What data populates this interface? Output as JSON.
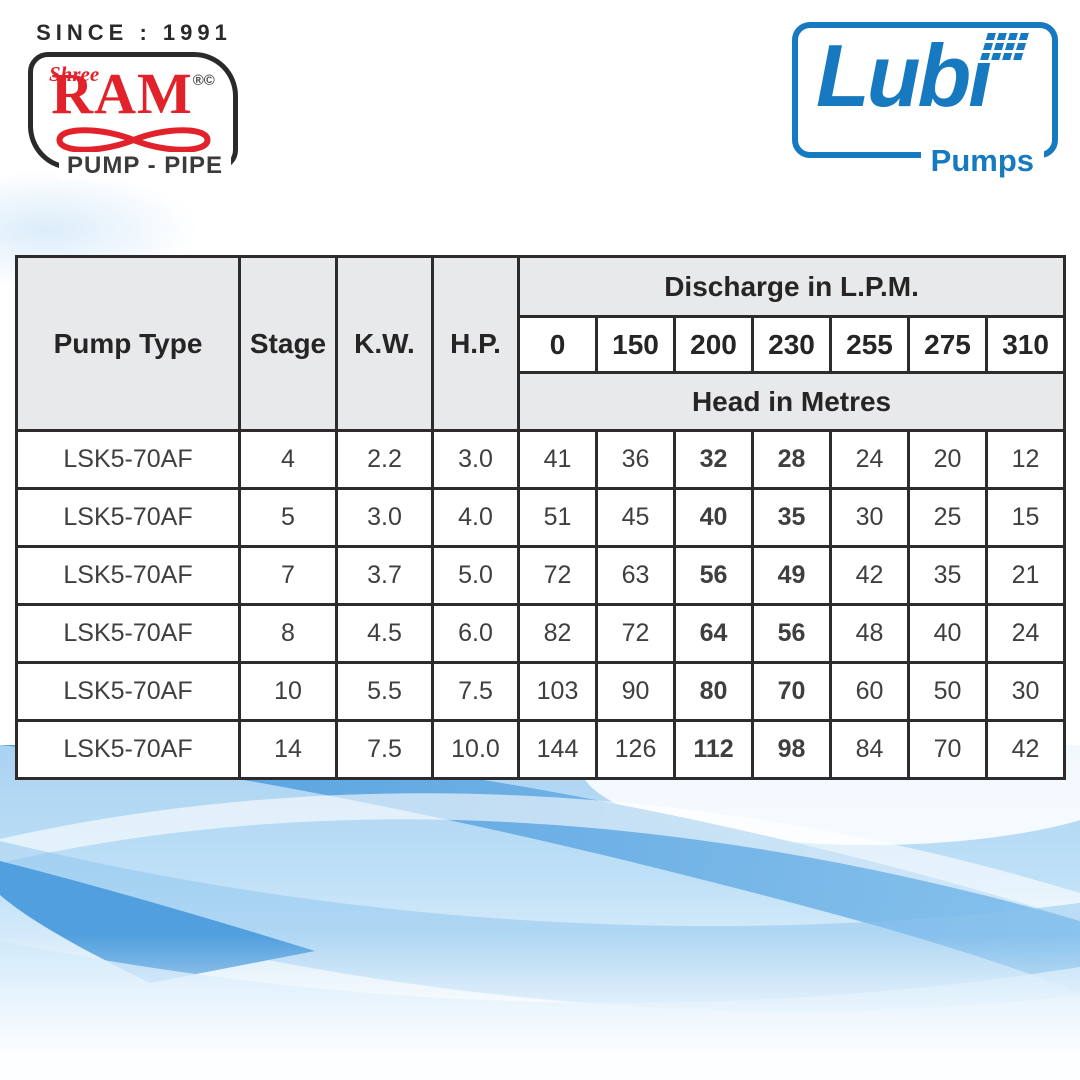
{
  "branding": {
    "since_label": "SINCE : 1991",
    "ram": {
      "script_word": "Shree",
      "wordmark": "RAM",
      "trademarks": "®©",
      "tagline": "PUMP - PIPE",
      "red": "#e2222a"
    },
    "lubi": {
      "wordmark": "Lubi",
      "sub_label": "Pumps",
      "blue": "#1779bf"
    }
  },
  "table": {
    "headers": {
      "pump_type": "Pump Type",
      "stage": "Stage",
      "kw": "K.W.",
      "hp": "H.P.",
      "discharge": "Discharge in L.P.M.",
      "head": "Head in Metres"
    },
    "discharge_columns": [
      "0",
      "150",
      "200",
      "230",
      "255",
      "275",
      "310"
    ],
    "bold_head_column_indexes": [
      2,
      3
    ],
    "rows": [
      {
        "pump_type": "LSK5-70AF",
        "stage": "4",
        "kw": "2.2",
        "hp": "3.0",
        "heads": [
          "41",
          "36",
          "32",
          "28",
          "24",
          "20",
          "12"
        ]
      },
      {
        "pump_type": "LSK5-70AF",
        "stage": "5",
        "kw": "3.0",
        "hp": "4.0",
        "heads": [
          "51",
          "45",
          "40",
          "35",
          "30",
          "25",
          "15"
        ]
      },
      {
        "pump_type": "LSK5-70AF",
        "stage": "7",
        "kw": "3.7",
        "hp": "5.0",
        "heads": [
          "72",
          "63",
          "56",
          "49",
          "42",
          "35",
          "21"
        ]
      },
      {
        "pump_type": "LSK5-70AF",
        "stage": "8",
        "kw": "4.5",
        "hp": "6.0",
        "heads": [
          "82",
          "72",
          "64",
          "56",
          "48",
          "40",
          "24"
        ]
      },
      {
        "pump_type": "LSK5-70AF",
        "stage": "10",
        "kw": "5.5",
        "hp": "7.5",
        "heads": [
          "103",
          "90",
          "80",
          "70",
          "60",
          "50",
          "30"
        ]
      },
      {
        "pump_type": "LSK5-70AF",
        "stage": "14",
        "kw": "7.5",
        "hp": "10.0",
        "heads": [
          "144",
          "126",
          "112",
          "98",
          "84",
          "70",
          "42"
        ]
      }
    ]
  },
  "colors": {
    "table_border": "#2d2b2c",
    "header_bg": "#e8e9ea",
    "data_text": "#3f3f41",
    "wave_blue_strong": "#57a3e0",
    "wave_blue_light": "#bfe0f7"
  }
}
